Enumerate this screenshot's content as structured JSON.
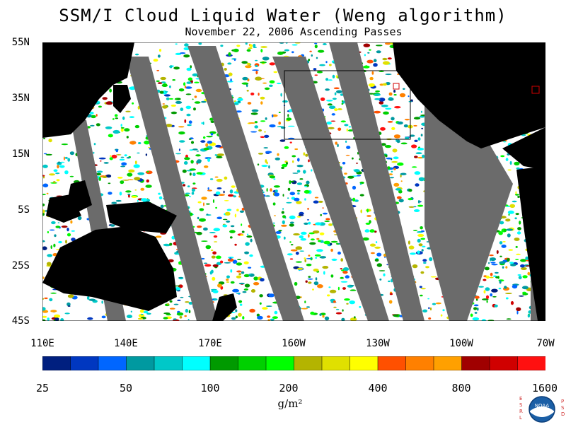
{
  "title": "SSM/I Cloud Liquid Water (Weng algorithm)",
  "subtitle": "November 22, 2006  Ascending Passes",
  "lat_labels": [
    "55N",
    "35N",
    "15N",
    "5S",
    "25S",
    "45S"
  ],
  "lon_labels": [
    "110E",
    "140E",
    "170E",
    "160W",
    "130W",
    "100W",
    "70W"
  ],
  "colorbar": {
    "tick_labels": [
      "25",
      "50",
      "100",
      "200",
      "400",
      "800",
      "1600"
    ],
    "unit": "g/m²",
    "colors": [
      "#001f7f",
      "#0037c0",
      "#0066ff",
      "#0099a0",
      "#00c8c8",
      "#00ffff",
      "#009a00",
      "#00d000",
      "#00ff00",
      "#b4b400",
      "#e0e000",
      "#ffff00",
      "#ff5000",
      "#ff8000",
      "#ffa000",
      "#a00000",
      "#d00000",
      "#ff1010"
    ]
  },
  "logo": {
    "left_letters": [
      "E",
      "S",
      "R",
      "L"
    ],
    "right_letters": [
      "P",
      "S",
      "D"
    ],
    "text": "NOAA"
  },
  "colors": {
    "land": "#000000",
    "no_data": "#6b6b6b",
    "clear": "#ffffff"
  }
}
